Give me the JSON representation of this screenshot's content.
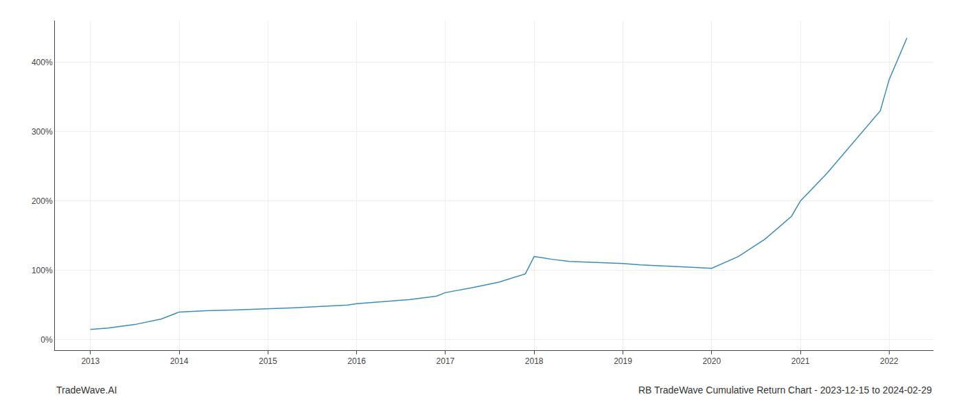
{
  "chart_data": {
    "type": "line",
    "title": "RB TradeWave Cumulative Return Chart - 2023-12-15 to 2024-02-29",
    "annotations": [
      "TradeWave.AI"
    ],
    "x": [
      2013.0,
      2013.2,
      2013.5,
      2013.8,
      2014.0,
      2014.3,
      2014.6,
      2014.9,
      2015.0,
      2015.3,
      2015.6,
      2015.9,
      2016.0,
      2016.3,
      2016.6,
      2016.9,
      2017.0,
      2017.3,
      2017.6,
      2017.9,
      2018.0,
      2018.1,
      2018.2,
      2018.4,
      2018.6,
      2018.8,
      2019.0,
      2019.2,
      2019.5,
      2019.8,
      2020.0,
      2020.3,
      2020.6,
      2020.9,
      2021.0,
      2021.3,
      2021.6,
      2021.9,
      2022.0,
      2022.2
    ],
    "values": [
      15,
      17,
      22,
      30,
      40,
      42,
      43,
      44,
      45,
      46,
      48,
      50,
      52,
      55,
      58,
      63,
      68,
      75,
      83,
      95,
      120,
      118,
      116,
      113,
      112,
      111,
      110,
      108,
      106,
      104,
      103,
      120,
      145,
      178,
      200,
      240,
      285,
      330,
      375,
      435
    ],
    "color": "#3a8bbf",
    "xlim": [
      2012.6,
      2022.5
    ],
    "xticks": [
      2013,
      2014,
      2015,
      2016,
      2017,
      2018,
      2019,
      2020,
      2021,
      2022
    ],
    "ylim": [
      -15,
      460
    ],
    "yticks": [
      {
        "value": 0,
        "label": "0%"
      },
      {
        "value": 100,
        "label": "100%"
      },
      {
        "value": 200,
        "label": "200%"
      },
      {
        "value": 300,
        "label": "300%"
      },
      {
        "value": 400,
        "label": "400%"
      }
    ],
    "grid": true
  }
}
